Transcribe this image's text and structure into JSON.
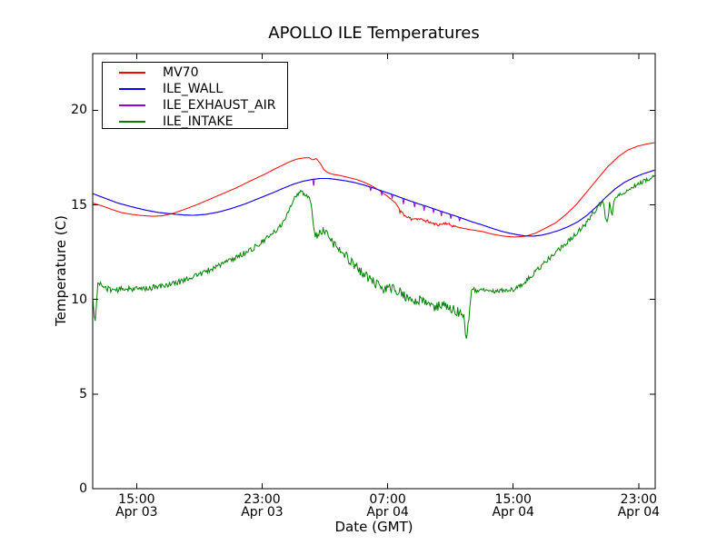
{
  "chart_data": {
    "type": "line",
    "title": "APOLLO ILE Temperatures",
    "xlabel": "Date (GMT)",
    "ylabel": "Temperature (C)",
    "background_color": "#ffffff",
    "axis_color": "#000000",
    "text_color": "#000000",
    "grid": false,
    "legend_position": "upper-left",
    "x_unit": "hours since Apr 03 00:00 GMT",
    "xlim": [
      12.2,
      48.05
    ],
    "ylim": [
      0,
      23
    ],
    "yticks": [
      0,
      5,
      10,
      15,
      20
    ],
    "xticks": [
      {
        "t": 15,
        "time": "15:00",
        "date": "Apr 03"
      },
      {
        "t": 23,
        "time": "23:00",
        "date": "Apr 03"
      },
      {
        "t": 31,
        "time": "07:00",
        "date": "Apr 04"
      },
      {
        "t": 39,
        "time": "15:00",
        "date": "Apr 04"
      },
      {
        "t": 47,
        "time": "23:00",
        "date": "Apr 04"
      }
    ],
    "draw_order": [
      0,
      2,
      1,
      3
    ],
    "series": [
      {
        "name": "MV70",
        "color": "#ff0000",
        "seed": 11,
        "noise_zones": [
          {
            "range": [
              31.7,
              35.3
            ],
            "amp": 0.07
          }
        ],
        "spikes": [
          [
            31.8,
            0.18
          ],
          [
            32.5,
            0.15
          ]
        ],
        "points": [
          [
            12.2,
            15.1
          ],
          [
            12.8,
            14.95
          ],
          [
            13.3,
            14.8
          ],
          [
            14.0,
            14.6
          ],
          [
            14.7,
            14.5
          ],
          [
            15.2,
            14.45
          ],
          [
            16.0,
            14.4
          ],
          [
            16.6,
            14.42
          ],
          [
            17.3,
            14.55
          ],
          [
            17.9,
            14.72
          ],
          [
            18.8,
            15.0
          ],
          [
            19.6,
            15.28
          ],
          [
            20.5,
            15.6
          ],
          [
            21.4,
            15.92
          ],
          [
            22.2,
            16.25
          ],
          [
            23.1,
            16.6
          ],
          [
            23.8,
            16.9
          ],
          [
            24.3,
            17.1
          ],
          [
            24.8,
            17.3
          ],
          [
            25.2,
            17.42
          ],
          [
            25.6,
            17.48
          ],
          [
            26.0,
            17.5
          ],
          [
            26.2,
            17.38
          ],
          [
            26.45,
            17.45
          ],
          [
            26.7,
            17.2
          ],
          [
            26.95,
            16.85
          ],
          [
            27.2,
            16.7
          ],
          [
            27.5,
            16.62
          ],
          [
            28.0,
            16.55
          ],
          [
            28.5,
            16.45
          ],
          [
            29.0,
            16.35
          ],
          [
            29.5,
            16.2
          ],
          [
            30.0,
            16.0
          ],
          [
            30.5,
            15.75
          ],
          [
            31.0,
            15.45
          ],
          [
            31.5,
            15.1
          ],
          [
            31.9,
            14.6
          ],
          [
            32.2,
            14.35
          ],
          [
            32.6,
            14.3
          ],
          [
            33.0,
            14.25
          ],
          [
            33.5,
            14.15
          ],
          [
            33.9,
            14.0
          ],
          [
            34.3,
            13.95
          ],
          [
            34.7,
            14.05
          ],
          [
            35.1,
            13.9
          ],
          [
            35.6,
            13.8
          ],
          [
            36.2,
            13.7
          ],
          [
            37.0,
            13.6
          ],
          [
            37.7,
            13.45
          ],
          [
            38.4,
            13.35
          ],
          [
            39.1,
            13.3
          ],
          [
            39.8,
            13.35
          ],
          [
            40.4,
            13.5
          ],
          [
            41.0,
            13.75
          ],
          [
            41.7,
            14.05
          ],
          [
            42.3,
            14.45
          ],
          [
            43.0,
            15.0
          ],
          [
            43.7,
            15.7
          ],
          [
            44.4,
            16.4
          ],
          [
            45.0,
            17.0
          ],
          [
            45.7,
            17.55
          ],
          [
            46.3,
            17.9
          ],
          [
            46.9,
            18.1
          ],
          [
            47.5,
            18.22
          ],
          [
            48.05,
            18.3
          ]
        ]
      },
      {
        "name": "ILE_WALL",
        "color": "#0000ff",
        "seed": 22,
        "points": [
          [
            12.2,
            15.6
          ],
          [
            13.0,
            15.35
          ],
          [
            13.8,
            15.1
          ],
          [
            14.7,
            14.9
          ],
          [
            15.6,
            14.72
          ],
          [
            16.4,
            14.6
          ],
          [
            17.3,
            14.52
          ],
          [
            18.0,
            14.47
          ],
          [
            18.6,
            14.45
          ],
          [
            19.4,
            14.5
          ],
          [
            20.2,
            14.62
          ],
          [
            21.0,
            14.8
          ],
          [
            21.9,
            15.05
          ],
          [
            22.8,
            15.35
          ],
          [
            23.7,
            15.65
          ],
          [
            24.4,
            15.9
          ],
          [
            25.0,
            16.1
          ],
          [
            25.6,
            16.25
          ],
          [
            26.2,
            16.35
          ],
          [
            26.7,
            16.4
          ],
          [
            27.2,
            16.4
          ],
          [
            27.7,
            16.35
          ],
          [
            28.3,
            16.28
          ],
          [
            28.9,
            16.18
          ],
          [
            29.5,
            16.05
          ],
          [
            30.0,
            15.92
          ],
          [
            30.6,
            15.75
          ],
          [
            31.2,
            15.58
          ],
          [
            31.8,
            15.4
          ],
          [
            32.4,
            15.22
          ],
          [
            33.0,
            15.05
          ],
          [
            33.5,
            14.92
          ],
          [
            34.1,
            14.75
          ],
          [
            34.7,
            14.58
          ],
          [
            35.3,
            14.42
          ],
          [
            35.8,
            14.28
          ],
          [
            36.4,
            14.1
          ],
          [
            37.0,
            13.95
          ],
          [
            37.6,
            13.78
          ],
          [
            38.2,
            13.62
          ],
          [
            38.8,
            13.5
          ],
          [
            39.3,
            13.42
          ],
          [
            39.8,
            13.36
          ],
          [
            40.3,
            13.35
          ],
          [
            40.8,
            13.4
          ],
          [
            41.3,
            13.5
          ],
          [
            41.9,
            13.65
          ],
          [
            42.5,
            13.85
          ],
          [
            43.1,
            14.1
          ],
          [
            43.7,
            14.45
          ],
          [
            44.3,
            14.9
          ],
          [
            44.9,
            15.4
          ],
          [
            45.5,
            15.85
          ],
          [
            46.1,
            16.2
          ],
          [
            46.7,
            16.45
          ],
          [
            47.3,
            16.65
          ],
          [
            48.05,
            16.85
          ]
        ]
      },
      {
        "name": "ILE_EXHAUST_AIR",
        "color": "#9400d3",
        "seed": 33,
        "spikes": [
          [
            26.3,
            0.35
          ],
          [
            29.9,
            0.2
          ],
          [
            30.6,
            0.25
          ],
          [
            31.3,
            0.22
          ],
          [
            32.0,
            0.3
          ],
          [
            32.7,
            0.25
          ],
          [
            33.3,
            0.28
          ],
          [
            33.9,
            0.22
          ],
          [
            34.4,
            0.25
          ],
          [
            35.0,
            0.22
          ],
          [
            35.6,
            0.2
          ]
        ],
        "points": [
          [
            12.2,
            15.6
          ],
          [
            13.0,
            15.35
          ],
          [
            13.8,
            15.1
          ],
          [
            14.7,
            14.9
          ],
          [
            15.6,
            14.72
          ],
          [
            16.4,
            14.6
          ],
          [
            17.3,
            14.52
          ],
          [
            18.0,
            14.47
          ],
          [
            18.6,
            14.45
          ],
          [
            19.4,
            14.5
          ],
          [
            20.2,
            14.62
          ],
          [
            21.0,
            14.8
          ],
          [
            21.9,
            15.05
          ],
          [
            22.8,
            15.35
          ],
          [
            23.7,
            15.65
          ],
          [
            24.4,
            15.9
          ],
          [
            25.0,
            16.1
          ],
          [
            25.6,
            16.25
          ],
          [
            26.2,
            16.35
          ],
          [
            26.7,
            16.4
          ],
          [
            27.2,
            16.4
          ],
          [
            27.7,
            16.35
          ],
          [
            28.3,
            16.28
          ],
          [
            28.9,
            16.18
          ],
          [
            29.5,
            16.05
          ],
          [
            30.0,
            15.92
          ],
          [
            30.6,
            15.75
          ],
          [
            31.2,
            15.58
          ],
          [
            31.8,
            15.4
          ],
          [
            32.4,
            15.22
          ],
          [
            33.0,
            15.05
          ],
          [
            33.5,
            14.92
          ],
          [
            34.1,
            14.75
          ],
          [
            34.7,
            14.58
          ],
          [
            35.3,
            14.42
          ],
          [
            35.8,
            14.28
          ],
          [
            36.4,
            14.1
          ],
          [
            37.0,
            13.95
          ],
          [
            37.6,
            13.78
          ],
          [
            38.2,
            13.62
          ],
          [
            38.8,
            13.5
          ],
          [
            39.3,
            13.42
          ],
          [
            39.8,
            13.36
          ],
          [
            40.3,
            13.35
          ],
          [
            40.8,
            13.4
          ],
          [
            41.3,
            13.5
          ],
          [
            41.9,
            13.65
          ],
          [
            42.5,
            13.85
          ],
          [
            43.1,
            14.1
          ],
          [
            43.7,
            14.45
          ],
          [
            44.3,
            14.9
          ],
          [
            44.9,
            15.4
          ],
          [
            45.5,
            15.85
          ],
          [
            46.1,
            16.2
          ],
          [
            46.7,
            16.45
          ],
          [
            47.3,
            16.65
          ],
          [
            48.05,
            16.85
          ]
        ]
      },
      {
        "name": "ILE_INTAKE",
        "color": "#008000",
        "seed": 44,
        "noise_zones": [
          {
            "range": [
              12.5,
              24.5
            ],
            "amp": 0.15
          },
          {
            "range": [
              24.5,
              26.2
            ],
            "amp": 0.1
          },
          {
            "range": [
              26.4,
              36.3
            ],
            "amp": 0.25
          },
          {
            "range": [
              36.4,
              40.0
            ],
            "amp": 0.12
          },
          {
            "range": [
              40.0,
              44.5
            ],
            "amp": 0.13
          },
          {
            "range": [
              44.5,
              48.05
            ],
            "amp": 0.1
          }
        ],
        "points": [
          [
            12.2,
            10.1
          ],
          [
            12.35,
            8.7
          ],
          [
            12.55,
            11.0
          ],
          [
            12.8,
            10.7
          ],
          [
            13.2,
            10.55
          ],
          [
            13.8,
            10.5
          ],
          [
            14.4,
            10.6
          ],
          [
            15.0,
            10.55
          ],
          [
            15.7,
            10.6
          ],
          [
            16.3,
            10.65
          ],
          [
            17.0,
            10.8
          ],
          [
            17.6,
            10.9
          ],
          [
            18.2,
            11.1
          ],
          [
            18.9,
            11.3
          ],
          [
            19.5,
            11.5
          ],
          [
            20.2,
            11.8
          ],
          [
            20.9,
            12.05
          ],
          [
            21.5,
            12.3
          ],
          [
            22.2,
            12.6
          ],
          [
            22.8,
            12.9
          ],
          [
            23.4,
            13.3
          ],
          [
            24.0,
            13.7
          ],
          [
            24.4,
            14.2
          ],
          [
            24.8,
            14.9
          ],
          [
            25.1,
            15.45
          ],
          [
            25.5,
            15.7
          ],
          [
            25.8,
            15.5
          ],
          [
            26.1,
            15.25
          ],
          [
            26.25,
            14.0
          ],
          [
            26.4,
            13.25
          ],
          [
            26.6,
            13.5
          ],
          [
            26.85,
            13.6
          ],
          [
            27.1,
            13.4
          ],
          [
            27.4,
            13.15
          ],
          [
            27.8,
            12.7
          ],
          [
            28.2,
            12.4
          ],
          [
            28.7,
            12.0
          ],
          [
            29.2,
            11.55
          ],
          [
            29.7,
            11.2
          ],
          [
            30.2,
            10.85
          ],
          [
            30.7,
            10.55
          ],
          [
            31.2,
            10.6
          ],
          [
            31.7,
            10.45
          ],
          [
            32.2,
            10.1
          ],
          [
            32.7,
            9.85
          ],
          [
            33.1,
            10.0
          ],
          [
            33.6,
            9.75
          ],
          [
            34.0,
            9.6
          ],
          [
            34.5,
            9.7
          ],
          [
            35.0,
            9.55
          ],
          [
            35.5,
            9.35
          ],
          [
            35.85,
            9.15
          ],
          [
            36.05,
            7.75
          ],
          [
            36.2,
            9.3
          ],
          [
            36.35,
            10.55
          ],
          [
            36.8,
            10.45
          ],
          [
            37.4,
            10.5
          ],
          [
            38.0,
            10.45
          ],
          [
            38.6,
            10.5
          ],
          [
            39.1,
            10.55
          ],
          [
            39.6,
            10.8
          ],
          [
            40.2,
            11.3
          ],
          [
            40.7,
            11.7
          ],
          [
            41.2,
            12.1
          ],
          [
            41.8,
            12.55
          ],
          [
            42.4,
            13.0
          ],
          [
            43.0,
            13.45
          ],
          [
            43.6,
            14.0
          ],
          [
            44.1,
            14.6
          ],
          [
            44.5,
            15.0
          ],
          [
            44.75,
            15.15
          ],
          [
            44.9,
            14.15
          ],
          [
            45.05,
            14.2
          ],
          [
            45.15,
            15.2
          ],
          [
            45.3,
            14.3
          ],
          [
            45.45,
            15.35
          ],
          [
            45.8,
            15.55
          ],
          [
            46.2,
            15.75
          ],
          [
            46.7,
            16.0
          ],
          [
            47.2,
            16.2
          ],
          [
            47.6,
            16.35
          ],
          [
            48.05,
            16.55
          ]
        ]
      }
    ]
  }
}
